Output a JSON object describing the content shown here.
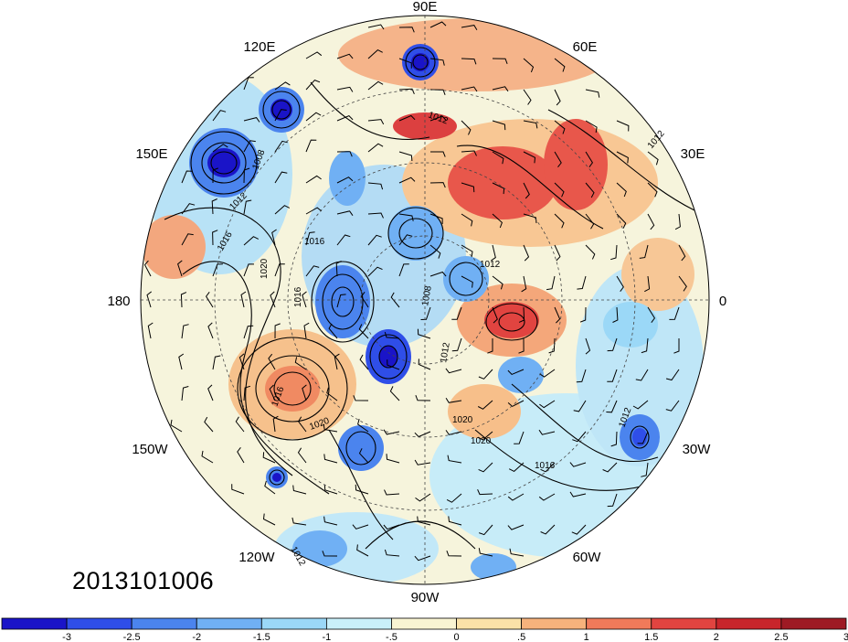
{
  "map": {
    "projection": "north-polar-stereographic",
    "longitude_labels": [
      "90E",
      "60E",
      "30E",
      "0",
      "30W",
      "60W",
      "90W",
      "120W",
      "150W",
      "180",
      "150E",
      "120E"
    ],
    "isobar_labels": [
      "1008",
      "1012",
      "1016",
      "1020",
      "1016",
      "1012",
      "1016",
      "1008",
      "1020",
      "1016",
      "1020",
      "1012",
      "1012",
      "1020",
      "1016",
      "1012",
      "1012",
      "1012"
    ],
    "date_label": "2013101006"
  },
  "colorbar": {
    "colors": [
      "#1a14c8",
      "#2f4ee8",
      "#4b84ee",
      "#70b0f4",
      "#9bd8f7",
      "#c9f0fa",
      "#f9f4d2",
      "#fbe2a8",
      "#f6b27c",
      "#f07a5a",
      "#e14440",
      "#c8252b",
      "#9e1a24"
    ],
    "tick_labels": [
      "-3",
      "-2.5",
      "-2",
      "-1.5",
      "-1",
      "-.5",
      "0",
      ".5",
      "1",
      "1.5",
      "2",
      "2.5",
      "3"
    ]
  }
}
